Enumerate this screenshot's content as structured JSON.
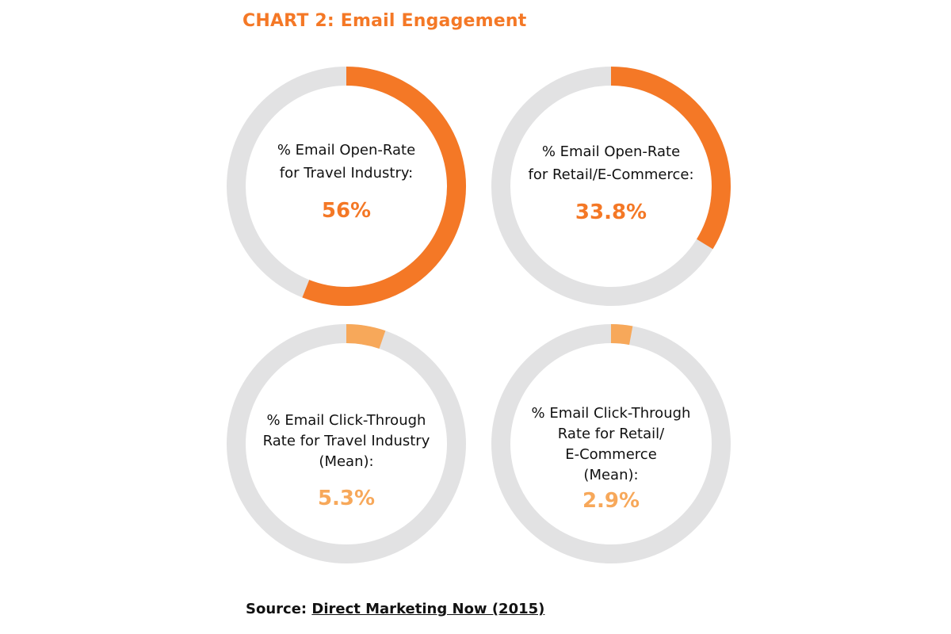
{
  "title": "CHART 2: Email Engagement",
  "colors": {
    "primary": "#f47826",
    "secondary": "#f7a85a",
    "track": "#e2e2e3"
  },
  "chart_data": [
    {
      "type": "pie",
      "label_lines": [
        "% Email Open-Rate",
        "for Travel Industry:"
      ],
      "value": 56,
      "display": "56%"
    },
    {
      "type": "pie",
      "label_lines": [
        "% Email Open-Rate",
        "for Retail/E-Commerce:"
      ],
      "value": 33.8,
      "display": "33.8%"
    },
    {
      "type": "pie",
      "label_lines": [
        "% Email Click-Through",
        "Rate for Travel Industry",
        "(Mean):"
      ],
      "value": 5.3,
      "display": "5.3%"
    },
    {
      "type": "pie",
      "label_lines": [
        "% Email Click-Through",
        "Rate for Retail/",
        "E-Commerce",
        "(Mean):"
      ],
      "value": 2.9,
      "display": "2.9%"
    }
  ],
  "source": {
    "prefix": "Source:",
    "link_text": "Direct Marketing Now (2015)"
  }
}
